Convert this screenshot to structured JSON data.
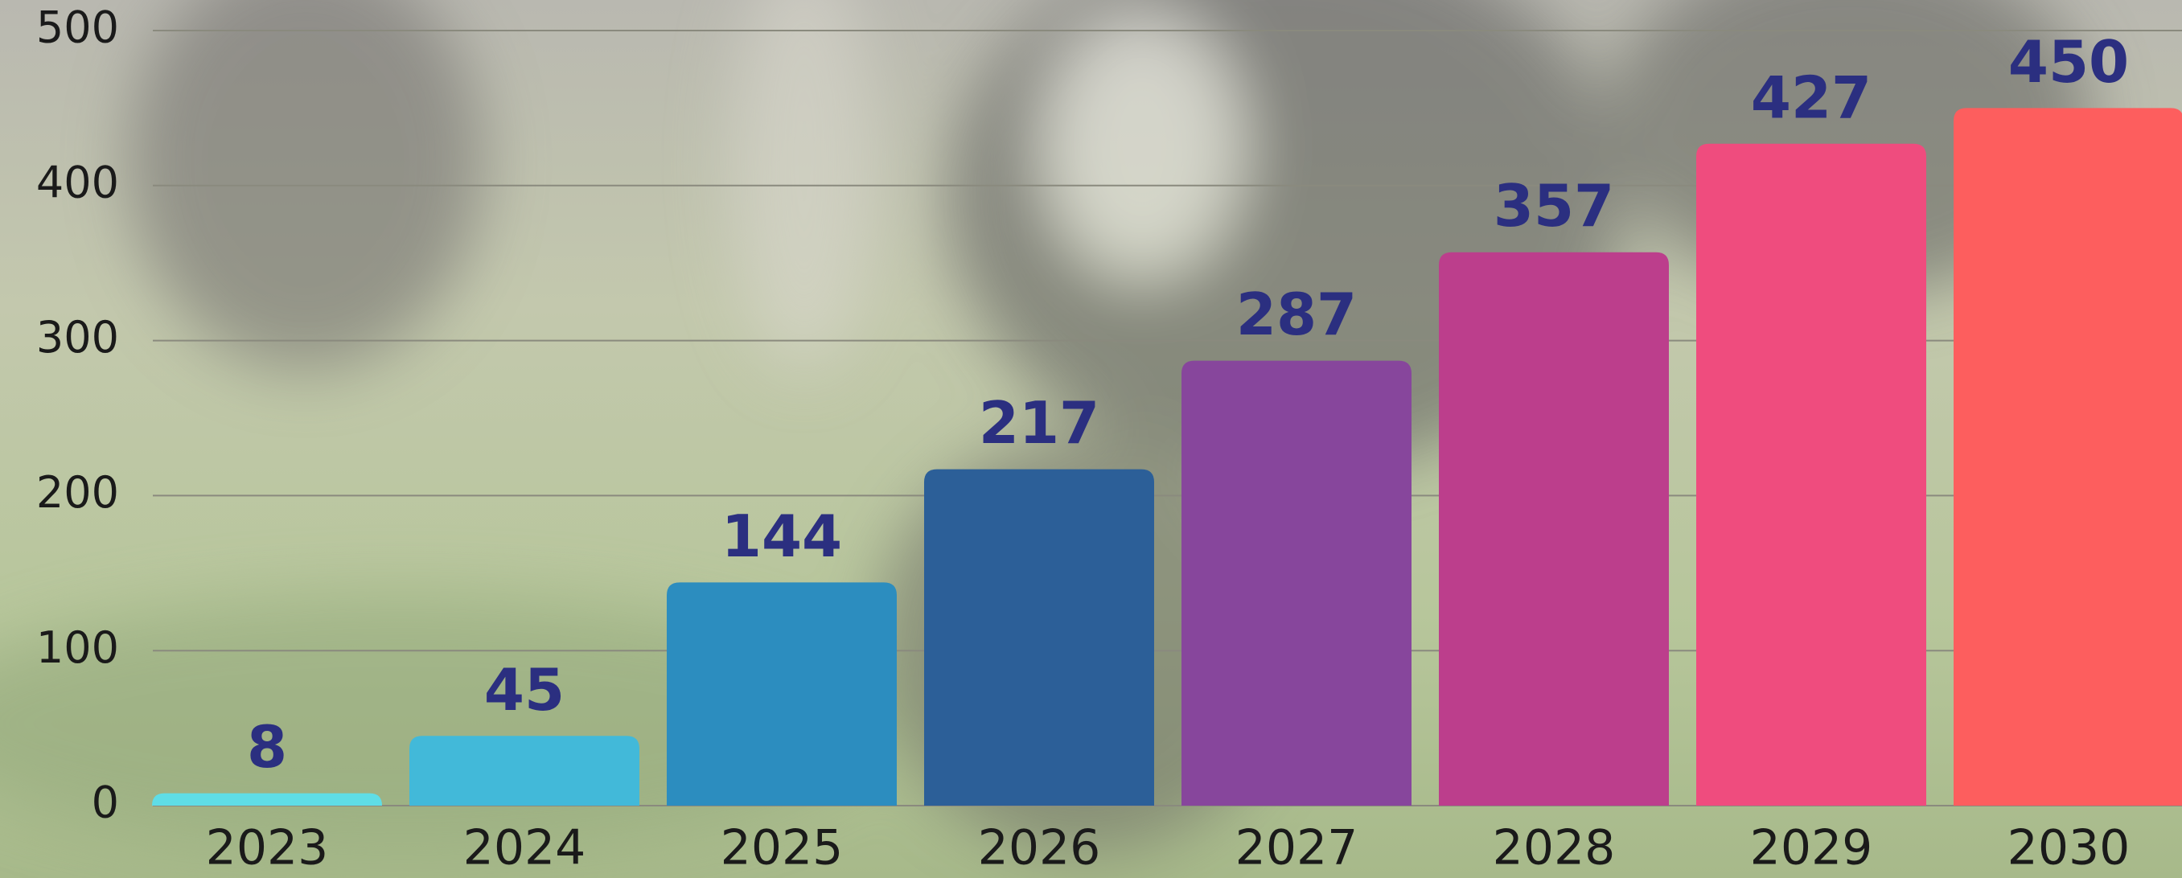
{
  "chart_data": {
    "type": "bar",
    "categories": [
      "2023",
      "2024",
      "2025",
      "2026",
      "2027",
      "2028",
      "2029",
      "2030"
    ],
    "values": [
      8,
      45,
      144,
      217,
      287,
      357,
      427,
      450
    ],
    "colors": [
      "#5fdde6",
      "#42b9d9",
      "#2c8dbf",
      "#2c5f98",
      "#87469c",
      "#bc3e8c",
      "#ef4c7e",
      "#fd5e5e"
    ],
    "label_color": "#2b2f80",
    "ylim": [
      0,
      500
    ],
    "yticks": [
      0,
      100,
      200,
      300,
      400,
      500
    ],
    "grid": true
  }
}
